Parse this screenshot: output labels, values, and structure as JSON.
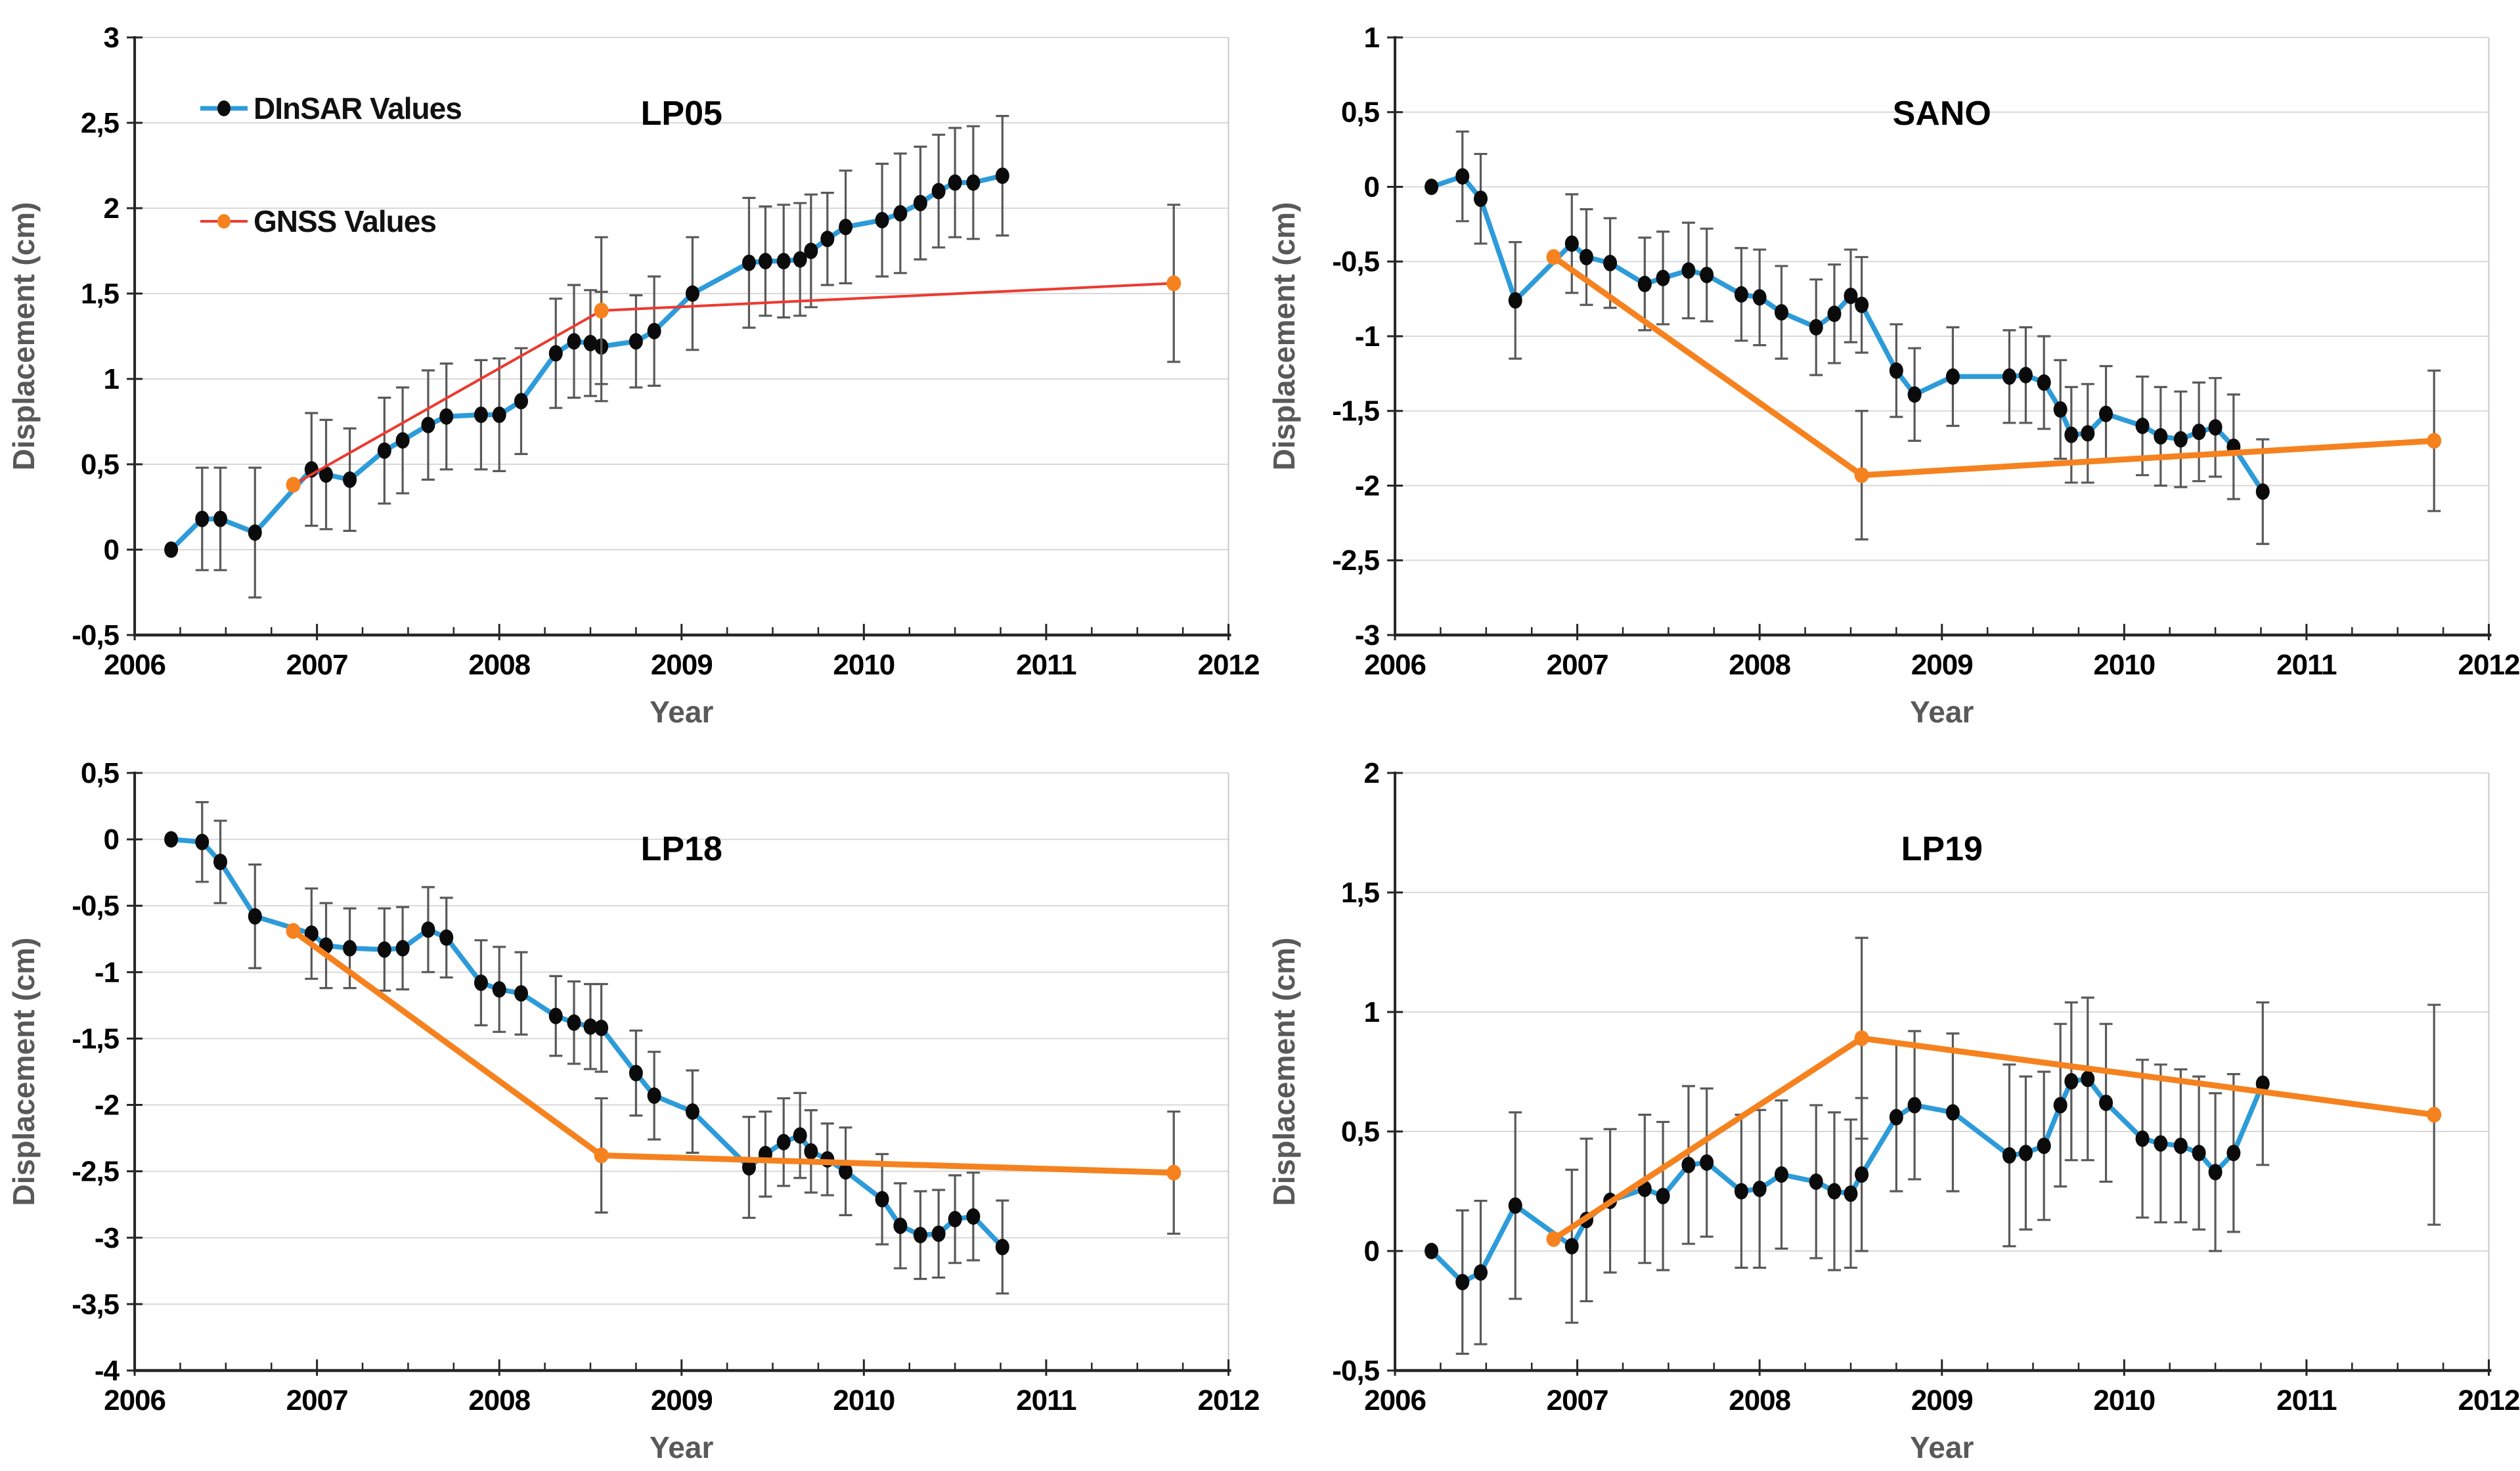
{
  "figure": {
    "xlabel": "Year",
    "ylabel": "Displacement (cm)",
    "xlim": [
      2006,
      2012
    ],
    "x_tick_labels": [
      "2006",
      "2007",
      "2008",
      "2009",
      "2010",
      "2011",
      "2012"
    ],
    "x_minor_tick_step": 0.25,
    "legend": [
      {
        "label": "DInSAR Values",
        "line_color": "#2D9BD9",
        "marker_color": "#0b0b0b"
      },
      {
        "label": "GNSS Values",
        "line_color": "#EC3A30",
        "marker_color": "#F5821F"
      }
    ],
    "colors": {
      "grid": "#D9D9D9",
      "axis": "#262626",
      "right_border": "#C9C9C9",
      "error_bar": "#595959",
      "dinsar_line": "#2D9BD9",
      "dinsar_marker": "#0b0b0b",
      "gnss_line_lp05": "#EC3A30",
      "gnss_line": "#F5821F",
      "gnss_marker": "#F5821F",
      "axis_label": "#595959",
      "title": "#000000"
    }
  },
  "chart_data": [
    {
      "title": "LP05",
      "type": "line",
      "xlim": [
        2006,
        2012
      ],
      "ylim": [
        -0.5,
        3
      ],
      "yticks": [
        -0.5,
        0,
        0.5,
        1,
        1.5,
        2,
        2.5,
        3
      ],
      "ytick_labels": [
        "-0,5",
        "0",
        "0,5",
        "1",
        "1,5",
        "2",
        "2,5",
        "3"
      ],
      "series": [
        {
          "name": "DInSAR Values",
          "color": "#2D9BD9",
          "marker_color": "#0b0b0b",
          "x": [
            2006.2,
            2006.37,
            2006.47,
            2006.66,
            2006.97,
            2007.05,
            2007.18,
            2007.37,
            2007.47,
            2007.61,
            2007.71,
            2007.9,
            2008.0,
            2008.12,
            2008.31,
            2008.41,
            2008.5,
            2008.56,
            2008.75,
            2008.85,
            2009.06,
            2009.37,
            2009.46,
            2009.56,
            2009.65,
            2009.71,
            2009.8,
            2009.9,
            2010.1,
            2010.2,
            2010.31,
            2010.41,
            2010.5,
            2010.6,
            2010.76
          ],
          "y": [
            0.0,
            0.18,
            0.18,
            0.1,
            0.47,
            0.44,
            0.41,
            0.58,
            0.64,
            0.73,
            0.78,
            0.79,
            0.79,
            0.87,
            1.15,
            1.22,
            1.21,
            1.19,
            1.22,
            1.28,
            1.5,
            1.68,
            1.69,
            1.69,
            1.7,
            1.75,
            1.82,
            1.89,
            1.93,
            1.97,
            2.03,
            2.1,
            2.15,
            2.15,
            2.19
          ],
          "err": [
            0,
            0.3,
            0.3,
            0.38,
            0.33,
            0.32,
            0.3,
            0.31,
            0.31,
            0.32,
            0.31,
            0.32,
            0.33,
            0.31,
            0.32,
            0.33,
            0.31,
            0.32,
            0.27,
            0.32,
            0.33,
            0.38,
            0.32,
            0.33,
            0.33,
            0.33,
            0.27,
            0.33,
            0.33,
            0.35,
            0.33,
            0.33,
            0.32,
            0.33,
            0.35
          ]
        },
        {
          "name": "GNSS Values",
          "color": "#EC3A30",
          "marker_color": "#F5821F",
          "x": [
            2006.87,
            2008.56,
            2011.7
          ],
          "y": [
            0.38,
            1.4,
            1.56
          ],
          "err": [
            0,
            0.43,
            0.46
          ]
        }
      ]
    },
    {
      "title": "SANO",
      "type": "line",
      "xlim": [
        2006,
        2012
      ],
      "ylim": [
        -3,
        1
      ],
      "yticks": [
        -3,
        -2.5,
        -2,
        -1.5,
        -1,
        -0.5,
        0,
        0.5,
        1
      ],
      "ytick_labels": [
        "-3",
        "-2,5",
        "-2",
        "-1,5",
        "-1",
        "-0,5",
        "0",
        "0,5",
        "1"
      ],
      "series": [
        {
          "name": "DInSAR Values",
          "color": "#2D9BD9",
          "marker_color": "#0b0b0b",
          "x": [
            2006.2,
            2006.37,
            2006.47,
            2006.66,
            2006.97,
            2007.05,
            2007.18,
            2007.37,
            2007.47,
            2007.61,
            2007.71,
            2007.9,
            2008.0,
            2008.12,
            2008.31,
            2008.41,
            2008.5,
            2008.56,
            2008.75,
            2008.85,
            2009.06,
            2009.37,
            2009.46,
            2009.56,
            2009.65,
            2009.71,
            2009.8,
            2009.9,
            2010.1,
            2010.2,
            2010.31,
            2010.41,
            2010.5,
            2010.6,
            2010.76
          ],
          "y": [
            0.0,
            0.07,
            -0.08,
            -0.76,
            -0.38,
            -0.47,
            -0.51,
            -0.65,
            -0.61,
            -0.56,
            -0.59,
            -0.72,
            -0.74,
            -0.84,
            -0.94,
            -0.85,
            -0.73,
            -0.79,
            -1.23,
            -1.39,
            -1.27,
            -1.27,
            -1.26,
            -1.31,
            -1.49,
            -1.66,
            -1.65,
            -1.52,
            -1.6,
            -1.67,
            -1.69,
            -1.64,
            -1.61,
            -1.74,
            -2.04
          ],
          "err": [
            0,
            0.3,
            0.3,
            0.39,
            0.33,
            0.32,
            0.3,
            0.31,
            0.31,
            0.32,
            0.31,
            0.31,
            0.32,
            0.31,
            0.32,
            0.33,
            0.31,
            0.32,
            0.31,
            0.31,
            0.33,
            0.31,
            0.32,
            0.31,
            0.33,
            0.32,
            0.33,
            0.32,
            0.33,
            0.33,
            0.32,
            0.33,
            0.33,
            0.35,
            0.35
          ]
        },
        {
          "name": "GNSS Values",
          "color": "#F5821F",
          "marker_color": "#F5821F",
          "x": [
            2006.87,
            2008.56,
            2011.7
          ],
          "y": [
            -0.47,
            -1.93,
            -1.7
          ],
          "err": [
            0,
            0.43,
            0.47
          ]
        }
      ]
    },
    {
      "title": "LP18",
      "type": "line",
      "xlim": [
        2006,
        2012
      ],
      "ylim": [
        -4,
        0.5
      ],
      "yticks": [
        -4,
        -3.5,
        -3,
        -2.5,
        -2,
        -1.5,
        -1,
        -0.5,
        0,
        0.5
      ],
      "ytick_labels": [
        "-4",
        "-3,5",
        "-3",
        "-2,5",
        "-2",
        "-1,5",
        "-1",
        "-0,5",
        "0",
        "0,5"
      ],
      "series": [
        {
          "name": "DInSAR Values",
          "color": "#2D9BD9",
          "marker_color": "#0b0b0b",
          "x": [
            2006.2,
            2006.37,
            2006.47,
            2006.66,
            2006.97,
            2007.05,
            2007.18,
            2007.37,
            2007.47,
            2007.61,
            2007.71,
            2007.9,
            2008.0,
            2008.12,
            2008.31,
            2008.41,
            2008.5,
            2008.56,
            2008.75,
            2008.85,
            2009.06,
            2009.37,
            2009.46,
            2009.56,
            2009.65,
            2009.71,
            2009.8,
            2009.9,
            2010.1,
            2010.2,
            2010.31,
            2010.41,
            2010.5,
            2010.6,
            2010.76
          ],
          "y": [
            0.0,
            -0.02,
            -0.17,
            -0.58,
            -0.71,
            -0.8,
            -0.82,
            -0.83,
            -0.82,
            -0.68,
            -0.74,
            -1.08,
            -1.13,
            -1.16,
            -1.33,
            -1.38,
            -1.41,
            -1.42,
            -1.76,
            -1.93,
            -2.05,
            -2.47,
            -2.37,
            -2.28,
            -2.23,
            -2.35,
            -2.41,
            -2.5,
            -2.71,
            -2.91,
            -2.98,
            -2.97,
            -2.86,
            -2.84,
            -3.07
          ],
          "err": [
            0,
            0.3,
            0.31,
            0.39,
            0.34,
            0.32,
            0.3,
            0.31,
            0.31,
            0.32,
            0.3,
            0.32,
            0.32,
            0.31,
            0.3,
            0.31,
            0.32,
            0.33,
            0.32,
            0.33,
            0.31,
            0.38,
            0.32,
            0.33,
            0.32,
            0.31,
            0.27,
            0.33,
            0.34,
            0.32,
            0.33,
            0.33,
            0.33,
            0.33,
            0.35
          ]
        },
        {
          "name": "GNSS Values",
          "color": "#F5821F",
          "marker_color": "#F5821F",
          "x": [
            2006.87,
            2008.56,
            2011.7
          ],
          "y": [
            -0.69,
            -2.38,
            -2.51
          ],
          "err": [
            0,
            0.43,
            0.46
          ]
        }
      ]
    },
    {
      "title": "LP19",
      "type": "line",
      "xlim": [
        2006,
        2012
      ],
      "ylim": [
        -0.5,
        2
      ],
      "yticks": [
        -0.5,
        0,
        0.5,
        1,
        1.5,
        2
      ],
      "ytick_labels": [
        "-0,5",
        "0",
        "0,5",
        "1",
        "1,5",
        "2"
      ],
      "series": [
        {
          "name": "DInSAR Values",
          "color": "#2D9BD9",
          "marker_color": "#0b0b0b",
          "x": [
            2006.2,
            2006.37,
            2006.47,
            2006.66,
            2006.97,
            2007.05,
            2007.18,
            2007.37,
            2007.47,
            2007.61,
            2007.71,
            2007.9,
            2008.0,
            2008.12,
            2008.31,
            2008.41,
            2008.5,
            2008.56,
            2008.75,
            2008.85,
            2009.06,
            2009.37,
            2009.46,
            2009.56,
            2009.65,
            2009.71,
            2009.8,
            2009.9,
            2010.1,
            2010.2,
            2010.31,
            2010.41,
            2010.5,
            2010.6,
            2010.76
          ],
          "y": [
            0.0,
            -0.13,
            -0.09,
            0.19,
            0.02,
            0.13,
            0.21,
            0.26,
            0.23,
            0.36,
            0.37,
            0.25,
            0.26,
            0.32,
            0.29,
            0.25,
            0.24,
            0.32,
            0.56,
            0.61,
            0.58,
            0.4,
            0.41,
            0.44,
            0.61,
            0.71,
            0.72,
            0.62,
            0.47,
            0.45,
            0.44,
            0.41,
            0.33,
            0.41,
            0.7
          ],
          "err": [
            0,
            0.3,
            0.3,
            0.39,
            0.32,
            0.34,
            0.3,
            0.31,
            0.31,
            0.33,
            0.31,
            0.32,
            0.33,
            0.31,
            0.32,
            0.33,
            0.31,
            0.32,
            0.31,
            0.31,
            0.33,
            0.38,
            0.32,
            0.31,
            0.34,
            0.33,
            0.34,
            0.33,
            0.33,
            0.33,
            0.32,
            0.32,
            0.33,
            0.33,
            0.34
          ]
        },
        {
          "name": "GNSS Values",
          "color": "#F5821F",
          "marker_color": "#F5821F",
          "x": [
            2006.87,
            2008.56,
            2011.7
          ],
          "y": [
            0.05,
            0.89,
            0.57
          ],
          "err": [
            0,
            0.42,
            0.46
          ]
        }
      ]
    }
  ]
}
